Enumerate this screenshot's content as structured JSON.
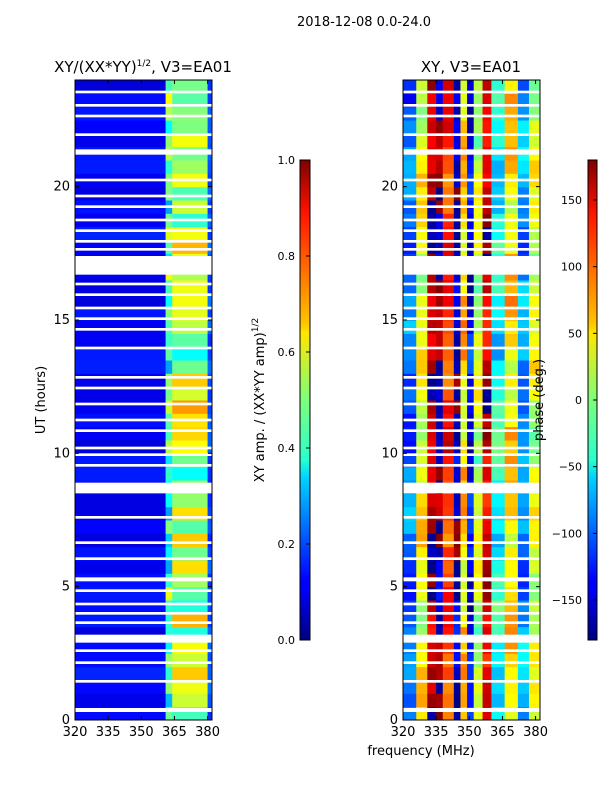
{
  "figure": {
    "suptitle": "2018-12-08 0.0-24.0",
    "shared_xlabel": "frequency (MHz)"
  },
  "colormap": "jet",
  "chart_data": [
    {
      "type": "heatmap",
      "title_main": "XY/(XX*YY)",
      "title_exp": "1/2",
      "title_suffix": ", V3=EA01",
      "ylabel": "UT (hours)",
      "xlim": [
        320,
        382
      ],
      "ylim": [
        0,
        24
      ],
      "xticks": [
        320,
        335,
        350,
        365,
        380
      ],
      "yticks": [
        0,
        5,
        10,
        15,
        20
      ],
      "colorbar": {
        "label_main": "XY amp. / (XX*YY amp)",
        "label_exp": "1/2",
        "range": [
          0.0,
          1.0
        ],
        "ticks": [
          "0.0",
          "0.2",
          "0.4",
          "0.6",
          "0.8",
          "1.0"
        ]
      },
      "description": "Normalized cross-hand amplitude: mostly low (~0.1) across 320-360 MHz; elevated values (0.4-0.9) in band 361-380 MHz with vertical structure",
      "bands": [
        {
          "from": 320,
          "to": 361,
          "level": 0.12
        },
        {
          "from": 361,
          "to": 364,
          "level": 0.45
        },
        {
          "from": 364,
          "to": 380,
          "level": 0.55
        },
        {
          "from": 380,
          "to": 382,
          "level": 0.2
        }
      ]
    },
    {
      "type": "heatmap",
      "title_main": "XY, V3=EA01",
      "ylabel": "",
      "xlim": [
        320,
        382
      ],
      "ylim": [
        0,
        24
      ],
      "xticks": [
        320,
        335,
        350,
        365,
        380
      ],
      "yticks": [
        0,
        5,
        10,
        15,
        20
      ],
      "colorbar": {
        "label_main": "phase (deg.)",
        "range": [
          -180,
          180
        ],
        "ticks": [
          "-150",
          "-100",
          "-50",
          "0",
          "50",
          "100",
          "150"
        ]
      },
      "description": "Cross-hand phase in degrees showing vertical frequency striping that wraps through the full -180 to 180 range",
      "bands": [
        {
          "from": 320,
          "to": 326,
          "phase": -100
        },
        {
          "from": 326,
          "to": 331,
          "phase": 40
        },
        {
          "from": 331,
          "to": 335,
          "phase": 160
        },
        {
          "from": 335,
          "to": 338,
          "phase": -170
        },
        {
          "from": 338,
          "to": 343,
          "phase": 120
        },
        {
          "from": 343,
          "to": 346,
          "phase": -160
        },
        {
          "from": 346,
          "to": 349,
          "phase": 60
        },
        {
          "from": 349,
          "to": 352,
          "phase": -140
        },
        {
          "from": 352,
          "to": 356,
          "phase": 20
        },
        {
          "from": 356,
          "to": 360,
          "phase": 150
        },
        {
          "from": 360,
          "to": 366,
          "phase": -40
        },
        {
          "from": 366,
          "to": 372,
          "phase": 60
        },
        {
          "from": 372,
          "to": 377,
          "phase": -80
        },
        {
          "from": 377,
          "to": 382,
          "phase": 30
        }
      ]
    }
  ],
  "flagged_gaps_hours": [
    [
      0.3,
      0.45
    ],
    [
      1.4,
      1.5
    ],
    [
      2.1,
      2.2
    ],
    [
      2.55,
      2.65
    ],
    [
      2.9,
      3.2
    ],
    [
      3.6,
      3.7
    ],
    [
      3.95,
      4.05
    ],
    [
      4.3,
      4.4
    ],
    [
      4.8,
      4.9
    ],
    [
      5.2,
      5.35
    ],
    [
      6.0,
      6.1
    ],
    [
      6.6,
      6.7
    ],
    [
      7.55,
      7.65
    ],
    [
      8.5,
      8.9
    ],
    [
      9.5,
      9.6
    ],
    [
      9.9,
      10.0
    ],
    [
      10.15,
      10.25
    ],
    [
      10.8,
      10.9
    ],
    [
      11.2,
      11.3
    ],
    [
      11.8,
      11.9
    ],
    [
      12.4,
      12.5
    ],
    [
      12.8,
      12.9
    ],
    [
      13.9,
      14.0
    ],
    [
      14.6,
      14.7
    ],
    [
      15.0,
      15.1
    ],
    [
      15.4,
      15.5
    ],
    [
      15.9,
      16.0
    ],
    [
      16.3,
      16.4
    ],
    [
      16.7,
      17.4
    ],
    [
      17.6,
      17.7
    ],
    [
      17.9,
      18.0
    ],
    [
      18.3,
      18.4
    ],
    [
      18.7,
      18.8
    ],
    [
      19.2,
      19.3
    ],
    [
      19.6,
      19.7
    ],
    [
      20.2,
      20.3
    ],
    [
      21.2,
      21.4
    ],
    [
      21.9,
      22.0
    ],
    [
      22.6,
      22.7
    ],
    [
      23.0,
      23.1
    ],
    [
      23.5,
      23.6
    ]
  ]
}
